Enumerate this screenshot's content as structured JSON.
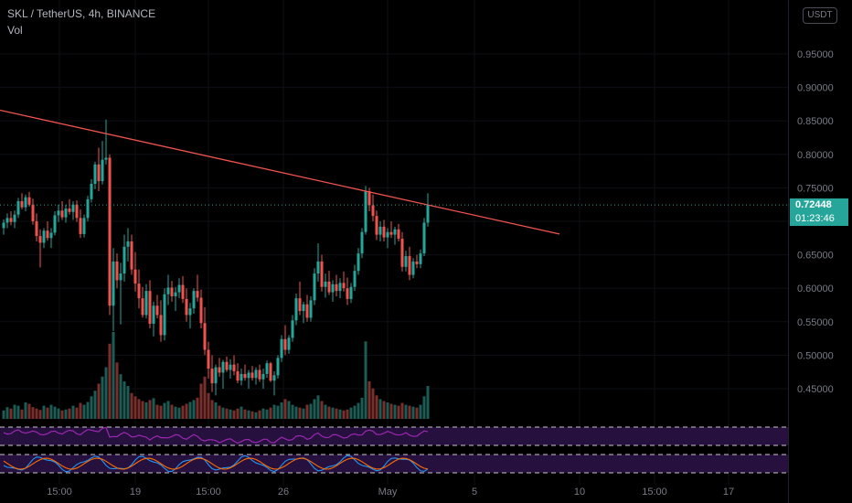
{
  "header": {
    "title": "SKL / TetherUS, 4h, BINANCE",
    "volume_label": "Vol"
  },
  "currency_badge": "USDT",
  "price_tag": {
    "price": "0.72448",
    "countdown": "01:23:46"
  },
  "colors": {
    "up": "#26a69a",
    "down": "#ef5350",
    "trendline": "#ef5350",
    "rsi": "#9c27b0",
    "stoch_k": "#2196f3",
    "stoch_d": "#ff6d00",
    "band_fill": "#2a1245"
  },
  "chart_data": {
    "type": "candlestick",
    "symbol": "SKL / TetherUS",
    "interval": "4h",
    "exchange": "BINANCE",
    "y_axis": {
      "ticks": [
        "0.95000",
        "0.90000",
        "0.85000",
        "0.80000",
        "0.75000",
        "0.70000",
        "0.65000",
        "0.60000",
        "0.55000",
        "0.50000",
        "0.45000"
      ],
      "range": [
        0.41,
        0.98
      ]
    },
    "x_axis": {
      "ticks": [
        "15:00",
        "19",
        "15:00",
        "26",
        "May",
        "5",
        "10",
        "15:00",
        "17"
      ]
    },
    "last_price": 0.72448,
    "trendline": {
      "from": {
        "bar": 0,
        "price": 0.866
      },
      "to": {
        "bar": 152,
        "price": 0.681
      }
    },
    "candles": [
      [
        0.69,
        0.703,
        0.68,
        0.698
      ],
      [
        0.698,
        0.712,
        0.69,
        0.705
      ],
      [
        0.705,
        0.715,
        0.694,
        0.699
      ],
      [
        0.699,
        0.716,
        0.69,
        0.71
      ],
      [
        0.71,
        0.735,
        0.705,
        0.73
      ],
      [
        0.73,
        0.742,
        0.718,
        0.721
      ],
      [
        0.721,
        0.74,
        0.715,
        0.736
      ],
      [
        0.736,
        0.744,
        0.722,
        0.725
      ],
      [
        0.725,
        0.734,
        0.695,
        0.7
      ],
      [
        0.7,
        0.712,
        0.67,
        0.678
      ],
      [
        0.678,
        0.688,
        0.631,
        0.668
      ],
      [
        0.668,
        0.69,
        0.66,
        0.686
      ],
      [
        0.686,
        0.7,
        0.671,
        0.675
      ],
      [
        0.675,
        0.69,
        0.66,
        0.683
      ],
      [
        0.683,
        0.715,
        0.679,
        0.709
      ],
      [
        0.709,
        0.725,
        0.699,
        0.716
      ],
      [
        0.716,
        0.73,
        0.702,
        0.706
      ],
      [
        0.706,
        0.725,
        0.698,
        0.719
      ],
      [
        0.719,
        0.733,
        0.71,
        0.714
      ],
      [
        0.714,
        0.73,
        0.702,
        0.725
      ],
      [
        0.725,
        0.731,
        0.699,
        0.705
      ],
      [
        0.705,
        0.718,
        0.675,
        0.681
      ],
      [
        0.681,
        0.71,
        0.676,
        0.705
      ],
      [
        0.705,
        0.738,
        0.7,
        0.733
      ],
      [
        0.733,
        0.763,
        0.728,
        0.756
      ],
      [
        0.756,
        0.789,
        0.748,
        0.785
      ],
      [
        0.785,
        0.81,
        0.745,
        0.76
      ],
      [
        0.76,
        0.82,
        0.755,
        0.792
      ],
      [
        0.792,
        0.852,
        0.785,
        0.795
      ],
      [
        0.795,
        0.8,
        0.56,
        0.574
      ],
      [
        0.574,
        0.66,
        0.536,
        0.64
      ],
      [
        0.64,
        0.652,
        0.6,
        0.612
      ],
      [
        0.612,
        0.638,
        0.546,
        0.622
      ],
      [
        0.622,
        0.68,
        0.61,
        0.662
      ],
      [
        0.662,
        0.69,
        0.64,
        0.67
      ],
      [
        0.67,
        0.68,
        0.62,
        0.628
      ],
      [
        0.628,
        0.654,
        0.595,
        0.607
      ],
      [
        0.607,
        0.628,
        0.57,
        0.585
      ],
      [
        0.585,
        0.602,
        0.556,
        0.56
      ],
      [
        0.56,
        0.606,
        0.555,
        0.596
      ],
      [
        0.596,
        0.612,
        0.54,
        0.547
      ],
      [
        0.547,
        0.58,
        0.528,
        0.574
      ],
      [
        0.574,
        0.59,
        0.555,
        0.56
      ],
      [
        0.56,
        0.582,
        0.52,
        0.53
      ],
      [
        0.53,
        0.6,
        0.522,
        0.591
      ],
      [
        0.591,
        0.62,
        0.575,
        0.601
      ],
      [
        0.601,
        0.611,
        0.58,
        0.588
      ],
      [
        0.588,
        0.602,
        0.566,
        0.594
      ],
      [
        0.594,
        0.615,
        0.585,
        0.605
      ],
      [
        0.605,
        0.618,
        0.578,
        0.584
      ],
      [
        0.584,
        0.6,
        0.55,
        0.56
      ],
      [
        0.56,
        0.578,
        0.54,
        0.57
      ],
      [
        0.57,
        0.6,
        0.562,
        0.596
      ],
      [
        0.596,
        0.62,
        0.58,
        0.586
      ],
      [
        0.586,
        0.598,
        0.54,
        0.548
      ],
      [
        0.548,
        0.572,
        0.5,
        0.508
      ],
      [
        0.508,
        0.52,
        0.465,
        0.48
      ],
      [
        0.48,
        0.5,
        0.445,
        0.458
      ],
      [
        0.458,
        0.486,
        0.44,
        0.482
      ],
      [
        0.482,
        0.496,
        0.468,
        0.474
      ],
      [
        0.474,
        0.493,
        0.45,
        0.49
      ],
      [
        0.49,
        0.498,
        0.475,
        0.478
      ],
      [
        0.478,
        0.494,
        0.465,
        0.486
      ],
      [
        0.486,
        0.5,
        0.47,
        0.476
      ],
      [
        0.476,
        0.488,
        0.458,
        0.462
      ],
      [
        0.462,
        0.48,
        0.455,
        0.472
      ],
      [
        0.472,
        0.486,
        0.462,
        0.466
      ],
      [
        0.466,
        0.478,
        0.45,
        0.474
      ],
      [
        0.474,
        0.484,
        0.462,
        0.466
      ],
      [
        0.466,
        0.482,
        0.456,
        0.478
      ],
      [
        0.478,
        0.486,
        0.46,
        0.464
      ],
      [
        0.464,
        0.48,
        0.45,
        0.472
      ],
      [
        0.472,
        0.492,
        0.466,
        0.488
      ],
      [
        0.488,
        0.49,
        0.46,
        0.462
      ],
      [
        0.462,
        0.476,
        0.44,
        0.47
      ],
      [
        0.47,
        0.5,
        0.465,
        0.496
      ],
      [
        0.496,
        0.53,
        0.49,
        0.524
      ],
      [
        0.524,
        0.545,
        0.5,
        0.508
      ],
      [
        0.508,
        0.53,
        0.502,
        0.526
      ],
      [
        0.526,
        0.56,
        0.52,
        0.552
      ],
      [
        0.552,
        0.592,
        0.545,
        0.585
      ],
      [
        0.585,
        0.61,
        0.56,
        0.566
      ],
      [
        0.566,
        0.58,
        0.548,
        0.576
      ],
      [
        0.576,
        0.59,
        0.55,
        0.556
      ],
      [
        0.556,
        0.588,
        0.55,
        0.582
      ],
      [
        0.582,
        0.63,
        0.575,
        0.622
      ],
      [
        0.622,
        0.667,
        0.61,
        0.64
      ],
      [
        0.64,
        0.65,
        0.595,
        0.602
      ],
      [
        0.602,
        0.622,
        0.586,
        0.61
      ],
      [
        0.61,
        0.626,
        0.59,
        0.594
      ],
      [
        0.594,
        0.612,
        0.58,
        0.606
      ],
      [
        0.606,
        0.62,
        0.588,
        0.596
      ],
      [
        0.596,
        0.615,
        0.585,
        0.608
      ],
      [
        0.608,
        0.625,
        0.595,
        0.6
      ],
      [
        0.6,
        0.616,
        0.575,
        0.584
      ],
      [
        0.584,
        0.608,
        0.578,
        0.602
      ],
      [
        0.602,
        0.635,
        0.596,
        0.626
      ],
      [
        0.626,
        0.66,
        0.62,
        0.652
      ],
      [
        0.652,
        0.69,
        0.645,
        0.684
      ],
      [
        0.684,
        0.753,
        0.68,
        0.745
      ],
      [
        0.745,
        0.75,
        0.715,
        0.724
      ],
      [
        0.724,
        0.74,
        0.7,
        0.708
      ],
      [
        0.708,
        0.716,
        0.672,
        0.68
      ],
      [
        0.68,
        0.7,
        0.67,
        0.692
      ],
      [
        0.692,
        0.702,
        0.67,
        0.676
      ],
      [
        0.676,
        0.69,
        0.66,
        0.684
      ],
      [
        0.684,
        0.7,
        0.675,
        0.68
      ],
      [
        0.68,
        0.692,
        0.665,
        0.688
      ],
      [
        0.688,
        0.696,
        0.67,
        0.674
      ],
      [
        0.674,
        0.684,
        0.625,
        0.632
      ],
      [
        0.632,
        0.656,
        0.625,
        0.648
      ],
      [
        0.648,
        0.662,
        0.612,
        0.62
      ],
      [
        0.62,
        0.645,
        0.615,
        0.64
      ],
      [
        0.64,
        0.65,
        0.63,
        0.636
      ],
      [
        0.636,
        0.658,
        0.63,
        0.652
      ],
      [
        0.652,
        0.705,
        0.648,
        0.698
      ],
      [
        0.698,
        0.742,
        0.692,
        0.724
      ]
    ],
    "volume": [
      18,
      25,
      22,
      30,
      28,
      20,
      35,
      32,
      25,
      22,
      19,
      28,
      24,
      30,
      26,
      22,
      18,
      20,
      22,
      28,
      24,
      34,
      30,
      36,
      48,
      60,
      75,
      90,
      110,
      160,
      185,
      120,
      95,
      80,
      70,
      55,
      48,
      42,
      38,
      35,
      40,
      44,
      30,
      28,
      34,
      38,
      30,
      26,
      24,
      28,
      32,
      36,
      40,
      45,
      75,
      90,
      55,
      40,
      35,
      28,
      24,
      22,
      20,
      18,
      22,
      26,
      20,
      18,
      16,
      14,
      18,
      22,
      20,
      24,
      30,
      28,
      35,
      42,
      38,
      30,
      26,
      24,
      22,
      30,
      32,
      42,
      50,
      38,
      30,
      26,
      24,
      22,
      20,
      18,
      20,
      24,
      28,
      34,
      45,
      165,
      80,
      65,
      50,
      42,
      38,
      35,
      32,
      30,
      28,
      34,
      30,
      28,
      26,
      24,
      30,
      48,
      70
    ],
    "indicators": {
      "rsi": {
        "upper_band": 70,
        "lower_band": 30
      },
      "stochastic": {
        "upper_band": 80,
        "lower_band": 20
      }
    }
  }
}
